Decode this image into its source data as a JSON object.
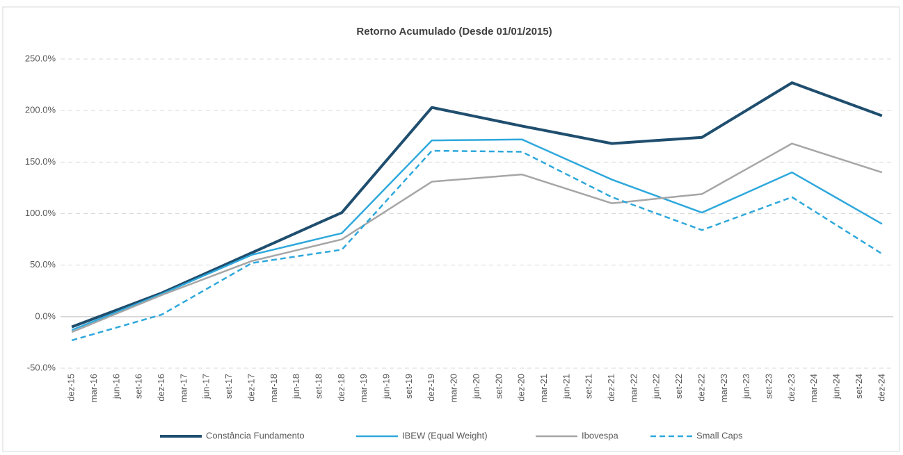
{
  "chart_data": {
    "type": "line",
    "title": "Retorno Acumulado (Desde 01/01/2015)",
    "categories": [
      "dez-15",
      "mar-16",
      "jun-16",
      "set-16",
      "dez-16",
      "mar-17",
      "jun-17",
      "set-17",
      "dez-17",
      "mar-18",
      "jun-18",
      "set-18",
      "dez-18",
      "mar-19",
      "jun-19",
      "set-19",
      "dez-19",
      "mar-20",
      "jun-20",
      "set-20",
      "dez-20",
      "mar-21",
      "jun-21",
      "set-21",
      "dez-21",
      "mar-22",
      "jun-22",
      "set-22",
      "dez-22",
      "mar-23",
      "jun-23",
      "set-23",
      "dez-23",
      "mar-24",
      "jun-24",
      "set-24",
      "dez-24"
    ],
    "series": [
      {
        "name": "Constância Fundamento",
        "color": "#1f4e6e",
        "width": 4,
        "dashed": false,
        "values": [
          -10,
          -1.75,
          6.5,
          14.75,
          23,
          32.75,
          42.5,
          52.25,
          62,
          71.75,
          81.5,
          91.25,
          101,
          126.5,
          152,
          177.5,
          203,
          198.5,
          194,
          189.5,
          185,
          180.75,
          176.5,
          172.25,
          168,
          169.5,
          171,
          172.5,
          174,
          187.25,
          200.5,
          213.75,
          227,
          219,
          211,
          203,
          195
        ]
      },
      {
        "name": "IBEW (Equal Weight)",
        "color": "#2ea8dc",
        "width": 2.5,
        "dashed": false,
        "values": [
          -13,
          -4.25,
          4.5,
          13.25,
          22,
          31.5,
          41,
          50.5,
          60,
          65.25,
          70.5,
          75.75,
          81,
          103.5,
          126,
          148.5,
          171,
          171.25,
          171.5,
          171.75,
          172,
          162.25,
          152.5,
          142.75,
          133,
          125,
          117,
          109,
          101,
          110.75,
          120.5,
          130.25,
          140,
          127.5,
          115,
          102.5,
          90
        ]
      },
      {
        "name": "Ibovespa",
        "color": "#a6a6a6",
        "width": 2.5,
        "dashed": false,
        "values": [
          -15,
          -6,
          3,
          12,
          21,
          29.25,
          37.5,
          45.75,
          54,
          59.25,
          64.5,
          69.75,
          75,
          89,
          103,
          117,
          131,
          132.75,
          134.5,
          136.25,
          138,
          131,
          124,
          117,
          110,
          112.25,
          114.5,
          116.75,
          119,
          131.25,
          143.5,
          155.75,
          168,
          161,
          154,
          147,
          140
        ]
      },
      {
        "name": "Small Caps",
        "color": "#2ea8dc",
        "width": 2.5,
        "dashed": true,
        "values": [
          -23,
          -16.75,
          -10.5,
          -4.25,
          2,
          14.5,
          27,
          39.5,
          52,
          55.25,
          58.5,
          61.75,
          65,
          89,
          113,
          137,
          161,
          160.75,
          160.5,
          160.25,
          160,
          149,
          138,
          127,
          116,
          108,
          100,
          92,
          84,
          92,
          100,
          108,
          116,
          102.25,
          88.5,
          74.75,
          61
        ]
      }
    ],
    "ylim": [
      -50,
      250
    ],
    "yticks": [
      {
        "value": -50,
        "label": "-50.0%"
      },
      {
        "value": 0,
        "label": "0.0%"
      },
      {
        "value": 50,
        "label": "50.0%"
      },
      {
        "value": 100,
        "label": "100.0%"
      },
      {
        "value": 150,
        "label": "150.0%"
      },
      {
        "value": 200,
        "label": "200.0%"
      },
      {
        "value": 250,
        "label": "250.0%"
      }
    ],
    "grid": true,
    "legend": "bottom"
  }
}
